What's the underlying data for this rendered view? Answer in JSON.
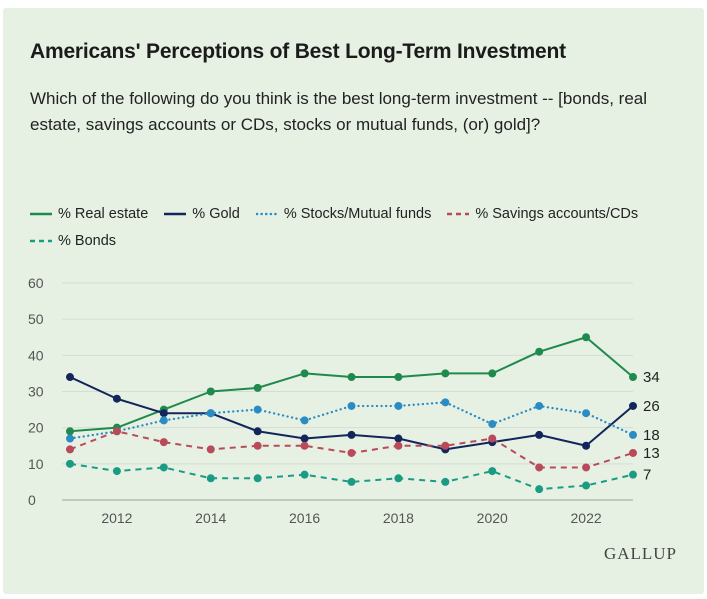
{
  "title": "Americans' Perceptions of Best Long-Term Investment",
  "subtitle": "Which of the following do you think is the best long-term investment -- [bonds, real estate, savings accounts or CDs, stocks or mutual funds, (or) gold]?",
  "brand": "GALLUP",
  "colors": {
    "background": "#e6f1e4",
    "real_estate": "#1f8a4c",
    "gold": "#13265c",
    "stocks": "#2b8cc4",
    "savings": "#b84a5a",
    "bonds": "#1a9b84"
  },
  "chart_data": {
    "type": "line",
    "x": [
      2011,
      2012,
      2013,
      2014,
      2015,
      2016,
      2017,
      2018,
      2019,
      2020,
      2021,
      2022,
      2023
    ],
    "x_ticks": [
      2012,
      2014,
      2016,
      2018,
      2020,
      2022
    ],
    "y_ticks": [
      0,
      10,
      20,
      30,
      40,
      50,
      60
    ],
    "ylim": [
      0,
      60
    ],
    "grid": "horizontal",
    "legend_position": "top",
    "series": [
      {
        "name": "% Real estate",
        "key": "real_estate",
        "dash": "solid",
        "values": [
          19,
          20,
          25,
          30,
          31,
          35,
          34,
          34,
          35,
          35,
          41,
          45,
          34
        ],
        "end_label": "34"
      },
      {
        "name": "% Gold",
        "key": "gold",
        "dash": "solid",
        "values": [
          34,
          28,
          24,
          24,
          19,
          17,
          18,
          17,
          14,
          16,
          18,
          15,
          26
        ],
        "end_label": "26"
      },
      {
        "name": "% Stocks/Mutual funds",
        "key": "stocks",
        "dash": "dotted",
        "values": [
          17,
          19,
          22,
          24,
          25,
          22,
          26,
          26,
          27,
          21,
          26,
          24,
          18
        ],
        "end_label": "18"
      },
      {
        "name": "% Savings accounts/CDs",
        "key": "savings",
        "dash": "dashed",
        "values": [
          14,
          19,
          16,
          14,
          15,
          15,
          13,
          15,
          15,
          17,
          9,
          9,
          13
        ],
        "end_label": "13"
      },
      {
        "name": "% Bonds",
        "key": "bonds",
        "dash": "dashed",
        "values": [
          10,
          8,
          9,
          6,
          6,
          7,
          5,
          6,
          5,
          8,
          3,
          4,
          7
        ],
        "end_label": "7"
      }
    ]
  }
}
